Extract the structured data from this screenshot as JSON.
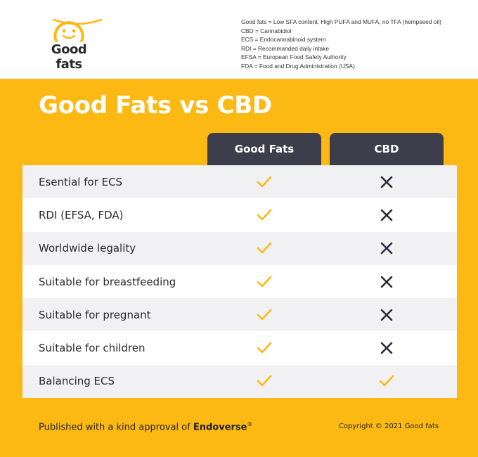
{
  "brand": {
    "name": "Good fats",
    "accent": "#FDB913",
    "dark": "#3D3D4C"
  },
  "legend": [
    "Good fats = Low SFA content, High PUFA and MUFA, no TFA (hempseed oil)",
    "CBD = Cannabidiol",
    "ECS = Endocannabinoid system",
    "RDI = Recommanded daily intake",
    "EFSA = European Food Safety Authority",
    "FDA = Food and Drug Administration (USA)"
  ],
  "title": "Good Fats vs CBD",
  "columns": [
    "Good Fats",
    "CBD"
  ],
  "rows": [
    {
      "label": "Esential for ECS",
      "good_fats": "check-icon",
      "cbd": "cross-icon"
    },
    {
      "label": "RDI (EFSA, FDA)",
      "good_fats": "check-icon",
      "cbd": "cross-icon"
    },
    {
      "label": "Worldwide legality",
      "good_fats": "check-icon",
      "cbd": "cross-icon"
    },
    {
      "label": "Suitable for breastfeeding",
      "good_fats": "check-icon",
      "cbd": "cross-icon"
    },
    {
      "label": "Suitable for pregnant",
      "good_fats": "check-icon",
      "cbd": "cross-icon"
    },
    {
      "label": "Suitable for children",
      "good_fats": "check-icon",
      "cbd": "cross-icon"
    },
    {
      "label": "Balancing ECS",
      "good_fats": "check-icon",
      "cbd": "check-icon"
    }
  ],
  "footer": {
    "published_prefix": "Published with a kind approval of ",
    "published_brand": "Endoverse",
    "registered_mark": "®",
    "copyright": "Copyright © 2021 Good fats"
  }
}
